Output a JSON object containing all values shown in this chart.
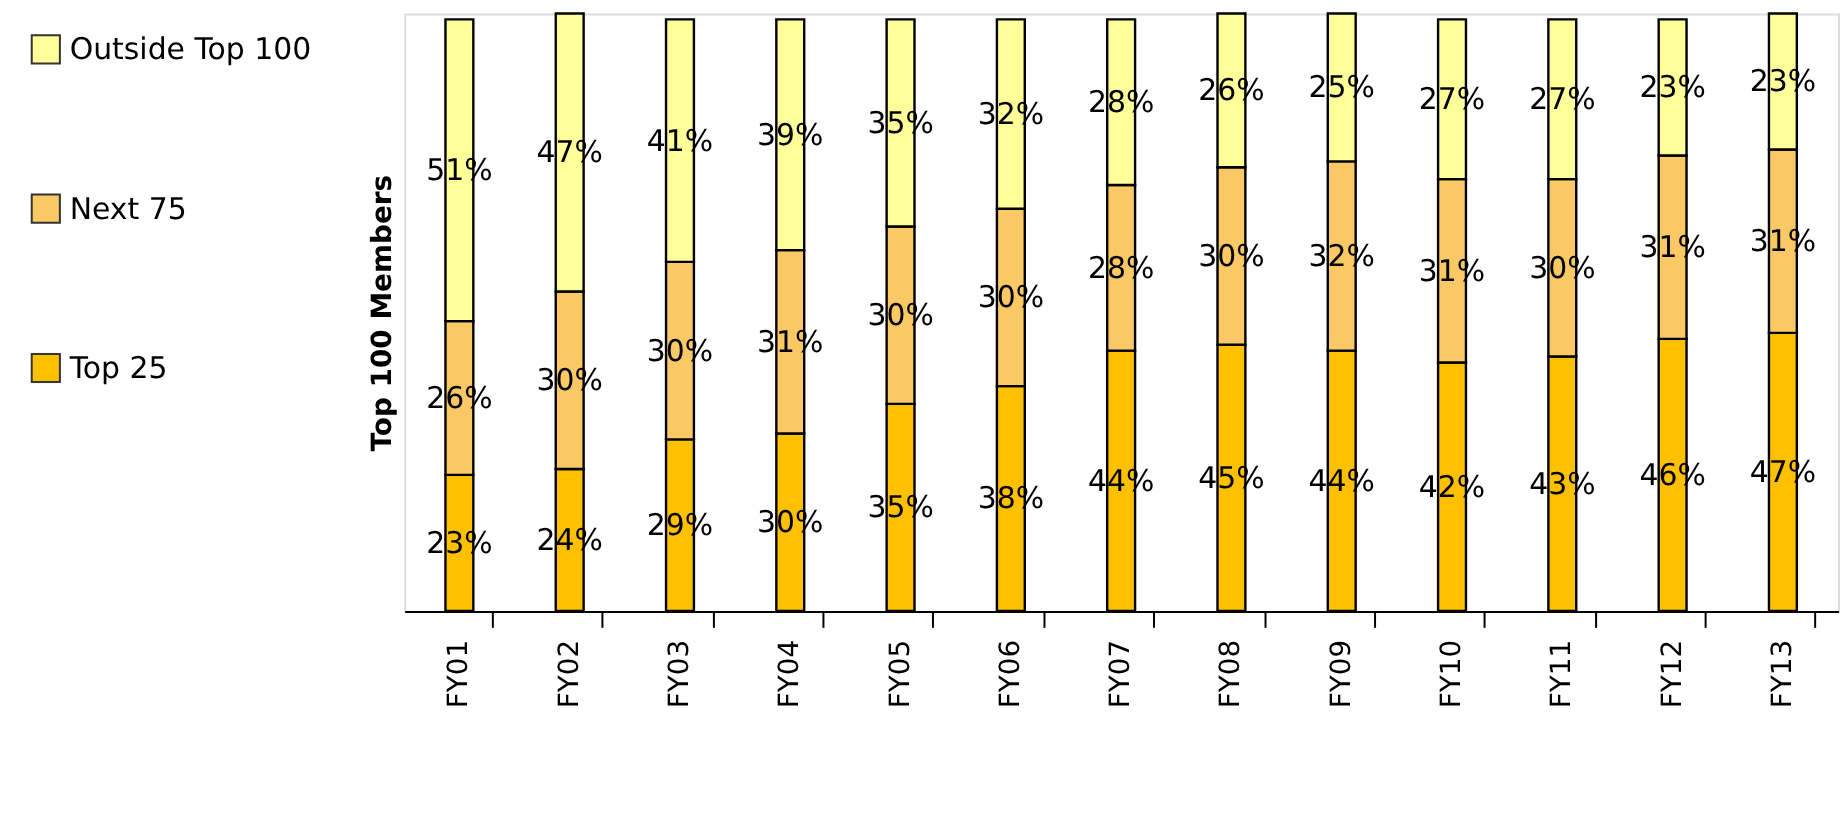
{
  "chart_data": {
    "type": "bar",
    "stacked": true,
    "ylabel": "Top 100 Members",
    "legend": "left",
    "categories": [
      "FY01",
      "FY02",
      "FY03",
      "FY04",
      "FY05",
      "FY06",
      "FY07",
      "FY08",
      "FY09",
      "FY10",
      "FY11",
      "FY12",
      "FY13"
    ],
    "series": [
      {
        "name": "Top 25",
        "color": "#ffc000",
        "values": [
          23,
          24,
          29,
          30,
          35,
          38,
          44,
          45,
          44,
          42,
          43,
          46,
          47
        ],
        "value_labels": [
          "23%",
          "24%",
          "29%",
          "30%",
          "35%",
          "38%",
          "44%",
          "45%",
          "44%",
          "42%",
          "43%",
          "46%",
          "47%"
        ]
      },
      {
        "name": "Next 75",
        "color": "#fac864",
        "values": [
          26,
          30,
          30,
          31,
          30,
          30,
          28,
          30,
          32,
          31,
          30,
          31,
          31
        ],
        "value_labels": [
          "26%",
          "30%",
          "30%",
          "31%",
          "30%",
          "30%",
          "28%",
          "30%",
          "32%",
          "31%",
          "30%",
          "31%",
          "31%"
        ]
      },
      {
        "name": "Outside Top 100",
        "color": "#ffff99",
        "values": [
          51,
          47,
          41,
          39,
          35,
          32,
          28,
          26,
          25,
          27,
          27,
          23,
          23
        ],
        "value_labels": [
          "51%",
          "47%",
          "41%",
          "39%",
          "35%",
          "32%",
          "28%",
          "26%",
          "25%",
          "27%",
          "27%",
          "23%",
          "23%"
        ]
      }
    ]
  }
}
